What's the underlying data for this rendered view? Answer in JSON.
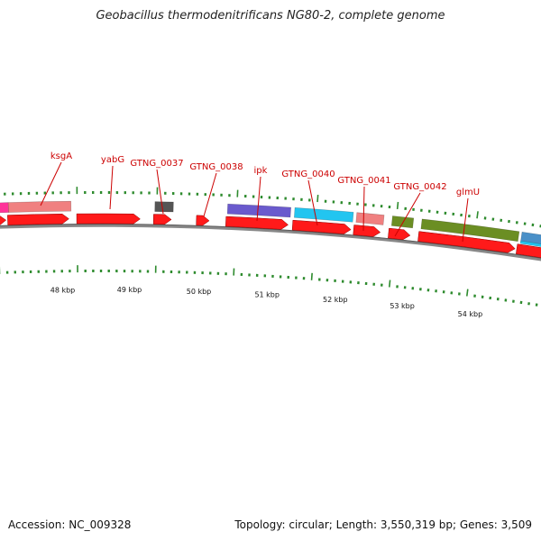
{
  "title": "Geobacillus thermodenitrificans NG80-2, complete genome",
  "footer": {
    "accession": "Accession: NC_009328",
    "summary": "Topology: circular; Length: 3,550,319 bp; Genes: 3,509"
  },
  "colors": {
    "cds": "#ff1a1a",
    "gene_pink": "#f08080",
    "gene_magenta": "#ff3399",
    "gene_gray": "#555555",
    "gene_purple": "#6a5acd",
    "gene_cyan": "#22c5f0",
    "gene_olive": "#6b8e23",
    "gene_steel": "#4a90c8",
    "label": "#cc0000",
    "tick": "#2e8b2e",
    "backbone": "#888888"
  },
  "kbp_labels": [
    "48 kbp",
    "49 kbp",
    "50 kbp",
    "51 kbp",
    "52 kbp",
    "53 kbp",
    "54 kbp"
  ],
  "gene_labels": [
    "ksgA",
    "yabG",
    "GTNG_0037",
    "GTNG_0038",
    "ipk",
    "GTNG_0040",
    "GTNG_0041",
    "GTNG_0042",
    "glmU"
  ]
}
